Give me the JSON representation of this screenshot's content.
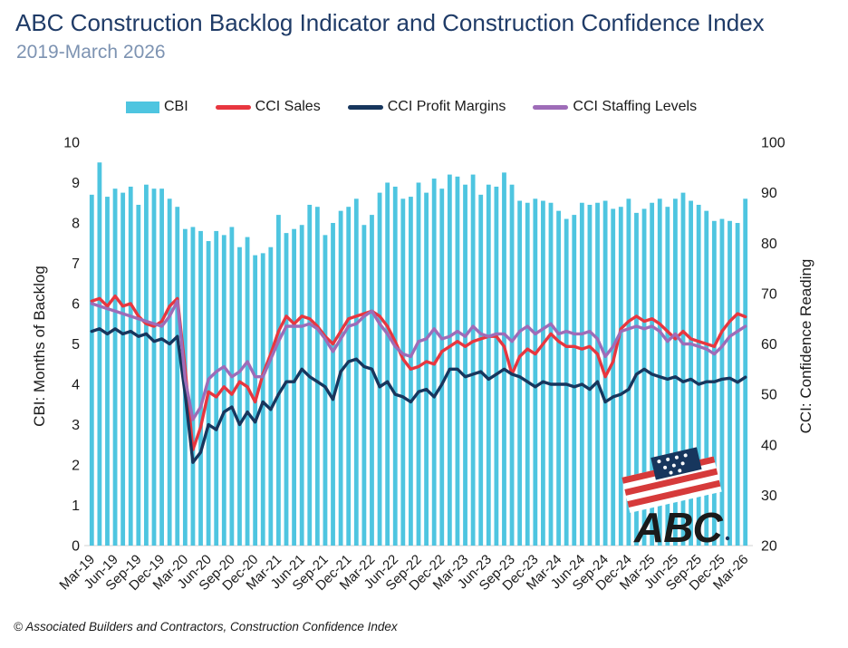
{
  "header": {
    "title": "ABC Construction Backlog Indicator and Construction Confidence Index",
    "subtitle": "2019-March 2026"
  },
  "legend": {
    "items": [
      {
        "label": "CBI",
        "swatch": "bar",
        "color": "#4EC5E0"
      },
      {
        "label": "CCI Sales",
        "swatch": "line",
        "color": "#E8363F"
      },
      {
        "label": "CCI Profit Margins",
        "swatch": "line",
        "color": "#17365D"
      },
      {
        "label": "CCI Staffing Levels",
        "swatch": "line",
        "color": "#9E6CB8"
      }
    ]
  },
  "chart_data": {
    "type": "combo-bar-line",
    "title": "ABC Construction Backlog Indicator and Construction Confidence Index",
    "subtitle": "2019-March 2026",
    "grid": false,
    "legend_position": "top",
    "x_tick_interval": 3,
    "categories": [
      "Mar-19",
      "Apr-19",
      "May-19",
      "Jun-19",
      "Jul-19",
      "Aug-19",
      "Sep-19",
      "Oct-19",
      "Nov-19",
      "Dec-19",
      "Jan-20",
      "Feb-20",
      "Mar-20",
      "Apr-20",
      "May-20",
      "Jun-20",
      "Jul-20",
      "Aug-20",
      "Sep-20",
      "Oct-20",
      "Nov-20",
      "Dec-20",
      "Jan-21",
      "Feb-21",
      "Mar-21",
      "Apr-21",
      "May-21",
      "Jun-21",
      "Jul-21",
      "Aug-21",
      "Sep-21",
      "Oct-21",
      "Nov-21",
      "Dec-21",
      "Jan-22",
      "Feb-22",
      "Mar-22",
      "Apr-22",
      "May-22",
      "Jun-22",
      "Jul-22",
      "Aug-22",
      "Sep-22",
      "Oct-22",
      "Nov-22",
      "Dec-22",
      "Jan-23",
      "Feb-23",
      "Mar-23",
      "Apr-23",
      "May-23",
      "Jun-23",
      "Jul-23",
      "Aug-23",
      "Sep-23",
      "Oct-23",
      "Nov-23",
      "Dec-23",
      "Jan-24",
      "Feb-24",
      "Mar-24",
      "Apr-24",
      "May-24",
      "Jun-24",
      "Jul-24",
      "Aug-24",
      "Sep-24",
      "Oct-24",
      "Nov-24",
      "Dec-24",
      "Jan-25",
      "Feb-25",
      "Mar-25",
      "Apr-25",
      "May-25",
      "Jun-25",
      "Jul-25",
      "Aug-25",
      "Sep-25",
      "Oct-25",
      "Nov-25",
      "Dec-25",
      "Jan-26",
      "Feb-26",
      "Mar-26"
    ],
    "bars": {
      "name": "CBI",
      "color": "#4EC5E0",
      "axis": "left",
      "values": [
        8.7,
        9.5,
        8.65,
        8.85,
        8.75,
        8.9,
        8.45,
        8.95,
        8.85,
        8.85,
        8.6,
        8.4,
        7.85,
        7.9,
        7.8,
        7.55,
        7.8,
        7.7,
        7.9,
        7.4,
        7.65,
        7.2,
        7.25,
        7.4,
        8.2,
        7.75,
        7.85,
        7.95,
        8.45,
        8.4,
        7.7,
        8.0,
        8.3,
        8.4,
        8.6,
        7.95,
        8.2,
        8.75,
        9.0,
        8.9,
        8.6,
        8.65,
        9.0,
        8.75,
        9.1,
        8.85,
        9.2,
        9.15,
        8.95,
        9.2,
        8.7,
        8.95,
        8.9,
        9.25,
        8.95,
        8.55,
        8.5,
        8.6,
        8.55,
        8.5,
        8.3,
        8.1,
        8.2,
        8.5,
        8.45,
        8.5,
        8.55,
        8.35,
        8.4,
        8.6,
        8.25,
        8.35,
        8.5,
        8.6,
        8.4,
        8.6,
        8.75,
        8.55,
        8.45,
        8.3,
        8.05,
        8.1,
        8.05,
        8.0,
        8.6
      ]
    },
    "series": [
      {
        "name": "CCI Sales",
        "color": "#E8363F",
        "axis": "right",
        "values": [
          68.5,
          69,
          67.5,
          69.5,
          67.5,
          68,
          65.5,
          64,
          63.5,
          64.5,
          67.5,
          69,
          55,
          39,
          43.5,
          50.5,
          49.5,
          51.5,
          50,
          52.5,
          51.5,
          48.5,
          54,
          58,
          62.5,
          65.5,
          64,
          65.5,
          65,
          63.5,
          61.5,
          60,
          62.5,
          65,
          65.5,
          66,
          66.5,
          65.5,
          63.5,
          60.5,
          57,
          55,
          55.5,
          56.5,
          56,
          58.5,
          59.5,
          60.5,
          59.5,
          60.5,
          61,
          61.5,
          61.5,
          59.5,
          54,
          57.5,
          59,
          58,
          60,
          62,
          60.5,
          59.5,
          59.5,
          59,
          59.5,
          58,
          53.5,
          56.5,
          63,
          64.5,
          65.5,
          64.5,
          65,
          64,
          62.5,
          61,
          62.5,
          61,
          60.5,
          60,
          59.5,
          62.5,
          64.5,
          66,
          65.4
        ]
      },
      {
        "name": "CCI Profit Margins",
        "color": "#17365D",
        "axis": "right",
        "values": [
          62.5,
          63,
          62,
          63,
          62,
          62.5,
          61.5,
          62,
          60.5,
          61,
          60,
          61.5,
          50,
          36.5,
          38.5,
          44,
          43,
          46.5,
          47.5,
          44,
          46.5,
          44.5,
          48.5,
          47,
          50,
          52.5,
          52.5,
          55,
          53.5,
          52.5,
          51.5,
          49,
          54.5,
          56.5,
          57,
          55.5,
          55,
          51.5,
          52.5,
          50,
          49.5,
          48.5,
          50.5,
          51,
          49.5,
          52,
          55,
          55,
          53.5,
          54,
          54.5,
          53,
          54,
          55,
          54,
          53.5,
          52.5,
          51.5,
          52.5,
          52,
          52,
          52,
          51.5,
          52,
          51,
          52.5,
          48.5,
          49.5,
          50,
          51,
          54,
          55,
          54,
          53.5,
          53,
          53.5,
          52.5,
          53,
          52,
          52.5,
          52.5,
          53,
          53.2,
          52.4,
          53.4
        ]
      },
      {
        "name": "CCI Staffing Levels",
        "color": "#9E6CB8",
        "axis": "right",
        "values": [
          68,
          67.5,
          67,
          66.5,
          66,
          65.5,
          65,
          64.5,
          64,
          63.5,
          65.5,
          68.5,
          53,
          45,
          47.5,
          53,
          54.5,
          55.5,
          53.5,
          54.5,
          56.5,
          53.5,
          53.5,
          57,
          60.5,
          63.5,
          63.5,
          63.5,
          64,
          63,
          61,
          58.5,
          61,
          63.5,
          64,
          65.5,
          66.5,
          64,
          62,
          59.5,
          58,
          57.5,
          60.5,
          61,
          63,
          61,
          61.5,
          62.5,
          61.5,
          63.5,
          62,
          61.5,
          62,
          62,
          60.5,
          62.5,
          63.5,
          62,
          63,
          64,
          62,
          62.5,
          62,
          62,
          62.5,
          61,
          57.5,
          59.5,
          62.5,
          63,
          63.5,
          63,
          63.5,
          62.5,
          60.5,
          62,
          60,
          60,
          59.5,
          59,
          58,
          59.5,
          61.5,
          62.5,
          63.5
        ]
      }
    ],
    "left_axis": {
      "label": "CBI: Months of Backlog",
      "min": 0,
      "max": 10,
      "ticks": [
        0,
        1,
        2,
        3,
        4,
        5,
        6,
        7,
        8,
        9,
        10
      ]
    },
    "right_axis": {
      "label": "CCI: Confidence Reading",
      "min": 20,
      "max": 100,
      "ticks": [
        20,
        30,
        40,
        50,
        60,
        70,
        80,
        90,
        100
      ]
    }
  },
  "footer": {
    "text": "© Associated Builders and Contractors, Construction Confidence Index"
  },
  "logo": {
    "text": "ABC"
  }
}
